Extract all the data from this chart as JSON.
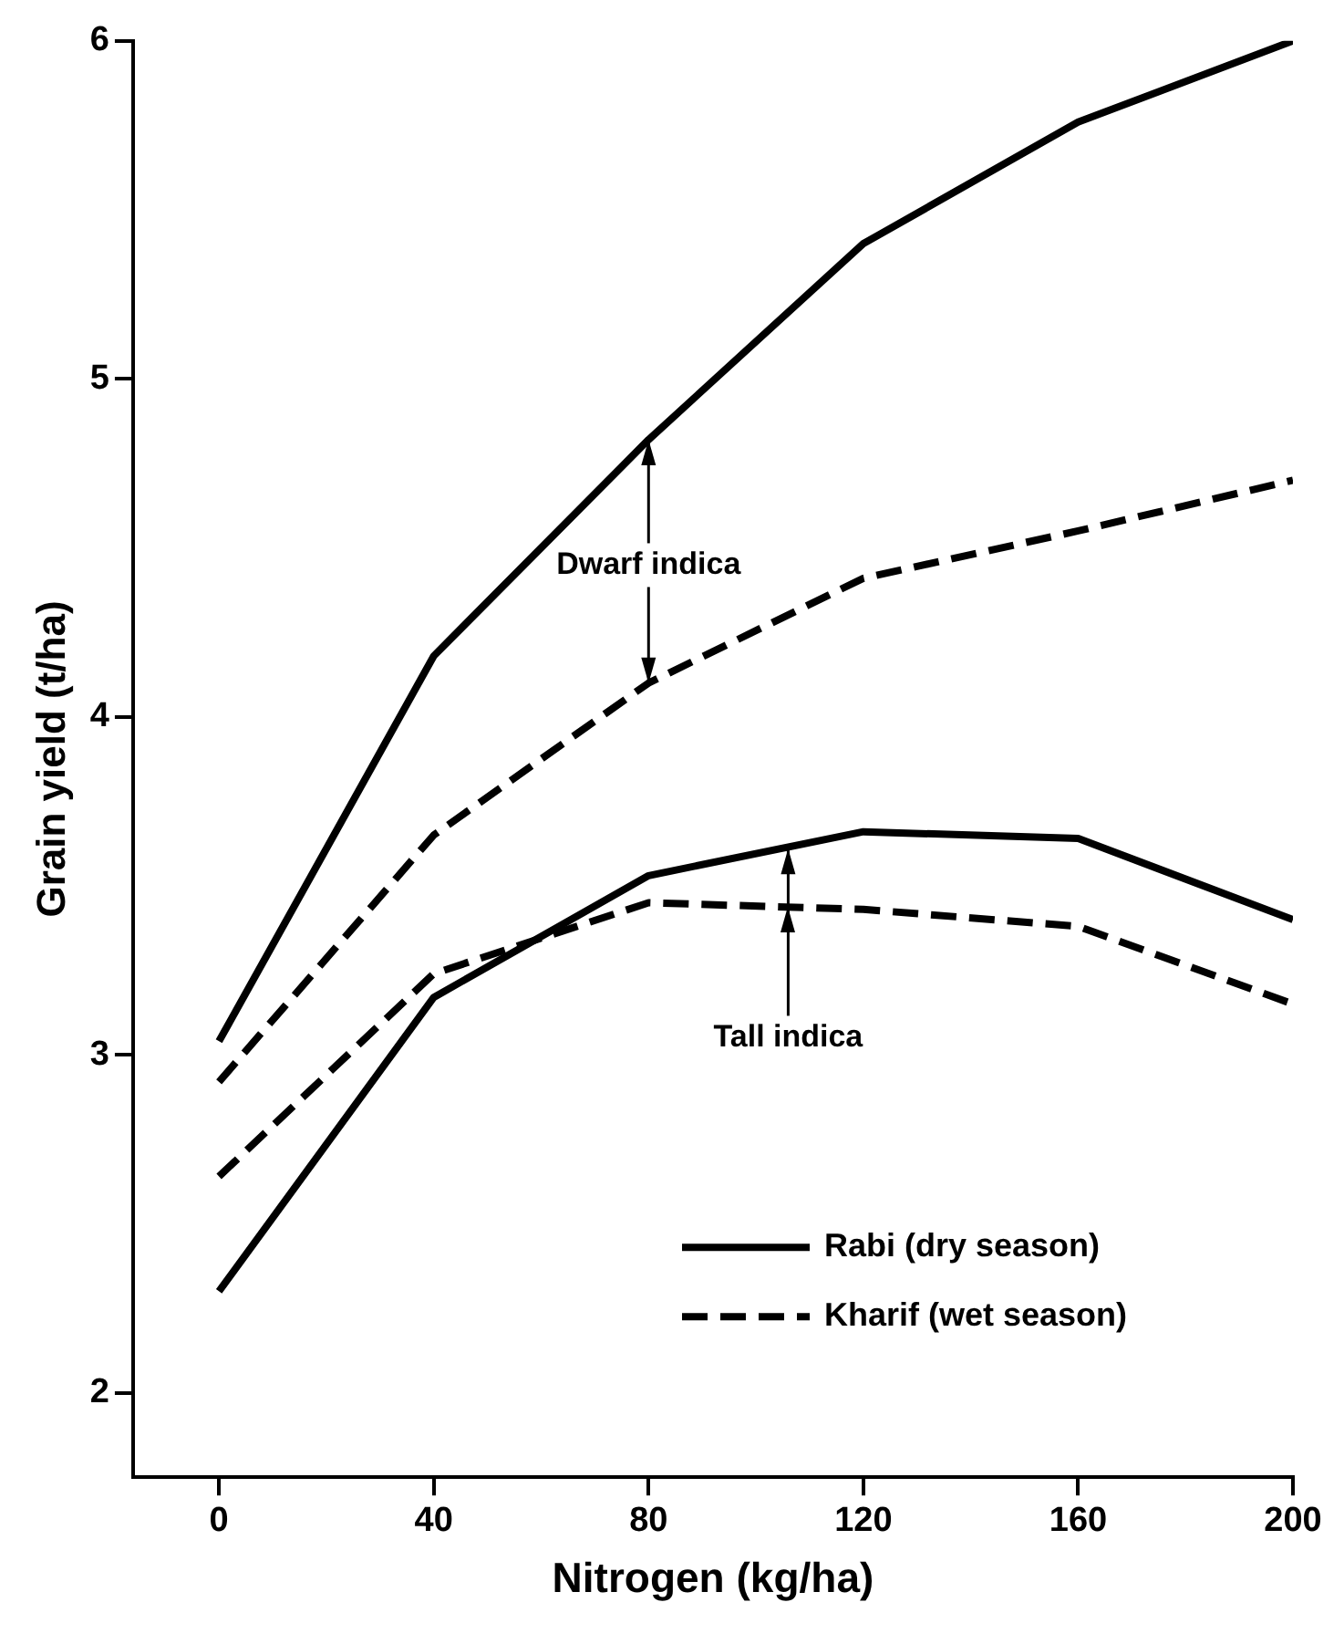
{
  "chart_data": {
    "type": "line",
    "xlabel": "Nitrogen (kg/ha)",
    "ylabel": "Grain yield (t/ha)",
    "x": [
      0,
      40,
      80,
      120,
      160,
      200
    ],
    "series": [
      {
        "name": "Rabi (dry season)",
        "color": "#000000",
        "line_style": "solid",
        "values": [
          3.04,
          4.18,
          4.82,
          5.4,
          5.76,
          6.0
        ]
      },
      {
        "name": "Kharif (wet season)",
        "color": "#000000",
        "line_style": "dashed",
        "values": [
          2.92,
          3.65,
          4.1,
          4.41,
          4.55,
          4.7
        ]
      },
      {
        "color": "#000000",
        "line_style": "solid",
        "values": [
          2.3,
          3.17,
          3.53,
          3.66,
          3.64,
          3.4
        ]
      },
      {
        "color": "#000000",
        "line_style": "dashed",
        "values": [
          2.64,
          3.24,
          3.45,
          3.43,
          3.38,
          3.15
        ]
      }
    ],
    "xlim": [
      -16,
      200
    ],
    "xticks": [
      0,
      40,
      80,
      120,
      160,
      200
    ],
    "ylim": [
      1.75,
      6
    ],
    "yticks": [
      2,
      3,
      4,
      5,
      6
    ],
    "grid": false,
    "legend": "bottom right",
    "marker": "none",
    "annotations": [
      {
        "text": "Dwarf indica",
        "x": 80,
        "y": 4.82
      },
      {
        "text": "Tall indica",
        "x": 106,
        "y": 3.61
      }
    ]
  }
}
